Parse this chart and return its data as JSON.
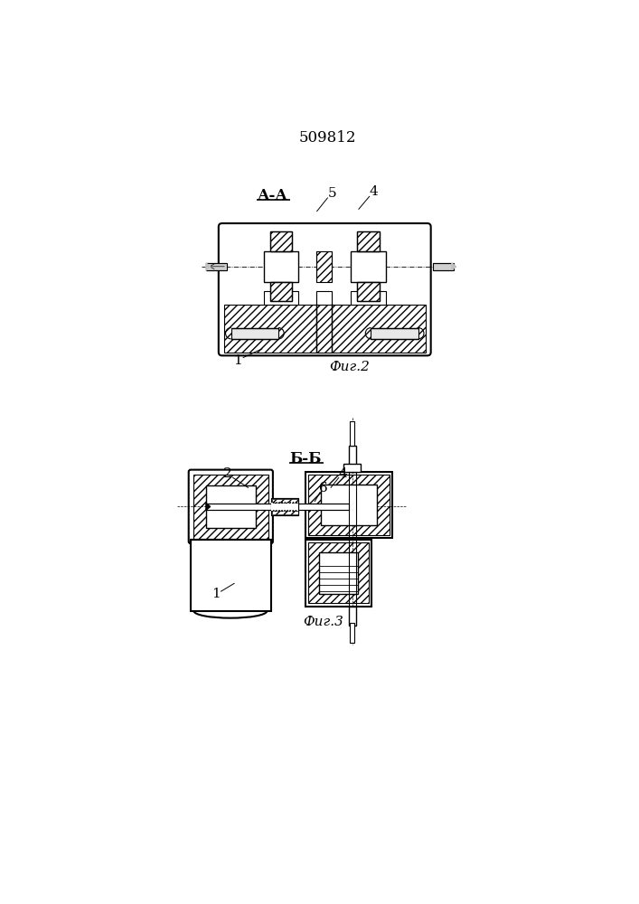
{
  "patent_number": "509812",
  "fig2_caption": "Фиг.2",
  "fig3_caption": "Фиг.3",
  "fig2_label": "А-А",
  "fig3_label": "Б-Б",
  "fig_width": 7.07,
  "fig_height": 10.0
}
